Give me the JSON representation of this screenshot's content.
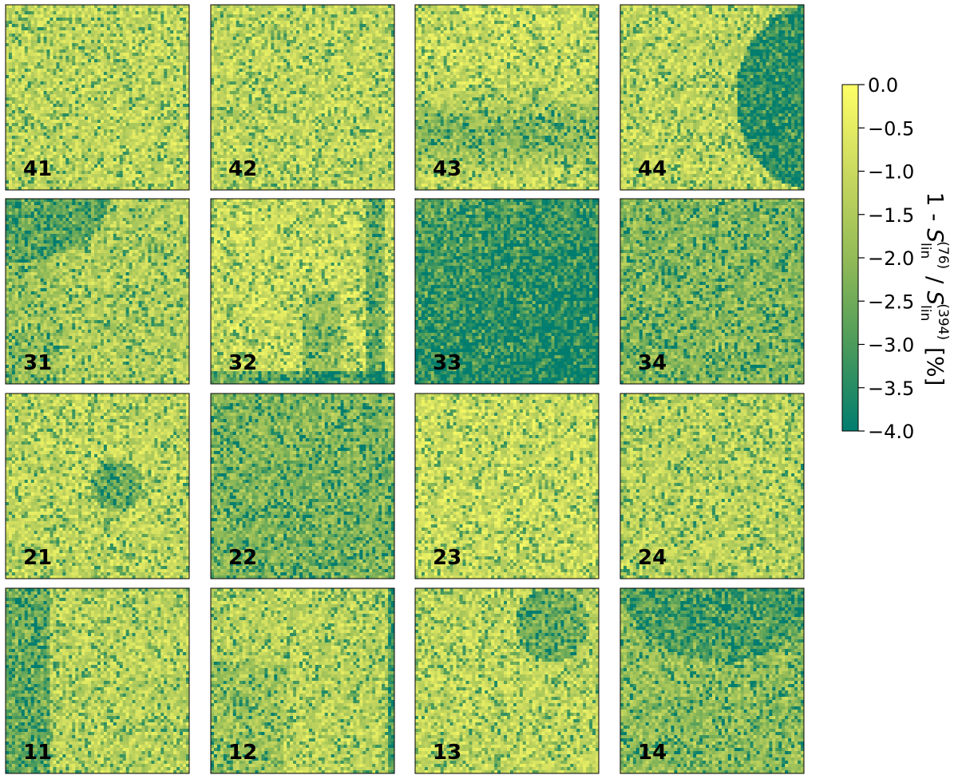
{
  "chart_data": {
    "type": "heatmap",
    "layout": "4x4 grid of detector panels",
    "panels": [
      {
        "label": "41",
        "pattern": "uniform",
        "dark_regions": []
      },
      {
        "label": "42",
        "pattern": "uniform",
        "dark_regions": []
      },
      {
        "label": "43",
        "pattern": "mild darker band across lower middle",
        "dark_regions": [
          "lower-middle"
        ]
      },
      {
        "label": "44",
        "pattern": "dark half-disc on right side",
        "dark_regions": [
          "right half-disc"
        ]
      },
      {
        "label": "31",
        "pattern": "darker upper-left corner and left side",
        "dark_regions": [
          "top-left"
        ]
      },
      {
        "label": "32",
        "pattern": "dark vertical stripes at right, dark bottom edge",
        "dark_regions": [
          "right stripes",
          "bottom edge"
        ]
      },
      {
        "label": "33",
        "pattern": "mostly dark, darkest toward bottom-right",
        "dark_regions": [
          "whole panel",
          "bottom-right"
        ]
      },
      {
        "label": "34",
        "pattern": "moderately dark overall",
        "dark_regions": [
          "whole panel"
        ]
      },
      {
        "label": "21",
        "pattern": "small dark blob near center",
        "dark_regions": [
          "center"
        ]
      },
      {
        "label": "22",
        "pattern": "moderately dark overall",
        "dark_regions": [
          "whole panel"
        ]
      },
      {
        "label": "23",
        "pattern": "uniform, light",
        "dark_regions": []
      },
      {
        "label": "24",
        "pattern": "uniform",
        "dark_regions": []
      },
      {
        "label": "11",
        "pattern": "dark region along left edge",
        "dark_regions": [
          "left edge"
        ]
      },
      {
        "label": "12",
        "pattern": "dark streak along right edge, darker lower-left",
        "dark_regions": [
          "right edge",
          "lower-left"
        ]
      },
      {
        "label": "13",
        "pattern": "dark patch at upper right",
        "dark_regions": [
          "upper-right"
        ]
      },
      {
        "label": "14",
        "pattern": "dark arc across top, darker overall",
        "dark_regions": [
          "top arc",
          "whole panel"
        ]
      }
    ],
    "colorbar": {
      "label_text": "1 - S",
      "label_parts": {
        "lead": "1 - ",
        "symbol": "S",
        "numerator_sub": "lin",
        "numerator_sup": "(76)",
        "separator": " / ",
        "denominator_sub": "lin",
        "denominator_sup": "(394)",
        "unit": " [%]"
      },
      "range": [
        -4.0,
        0.0
      ],
      "ticks": [
        0.0,
        -0.5,
        -1.0,
        -1.5,
        -2.0,
        -2.5,
        -3.0,
        -3.5,
        -4.0
      ],
      "tick_labels": [
        "0.0",
        "−0.5",
        "−1.0",
        "−1.5",
        "−2.0",
        "−2.5",
        "−3.0",
        "−3.5",
        "−4.0"
      ],
      "colormap": [
        "#007d6f",
        "#4c9b5b",
        "#93bb57",
        "#cad95f",
        "#ffff66"
      ]
    }
  }
}
